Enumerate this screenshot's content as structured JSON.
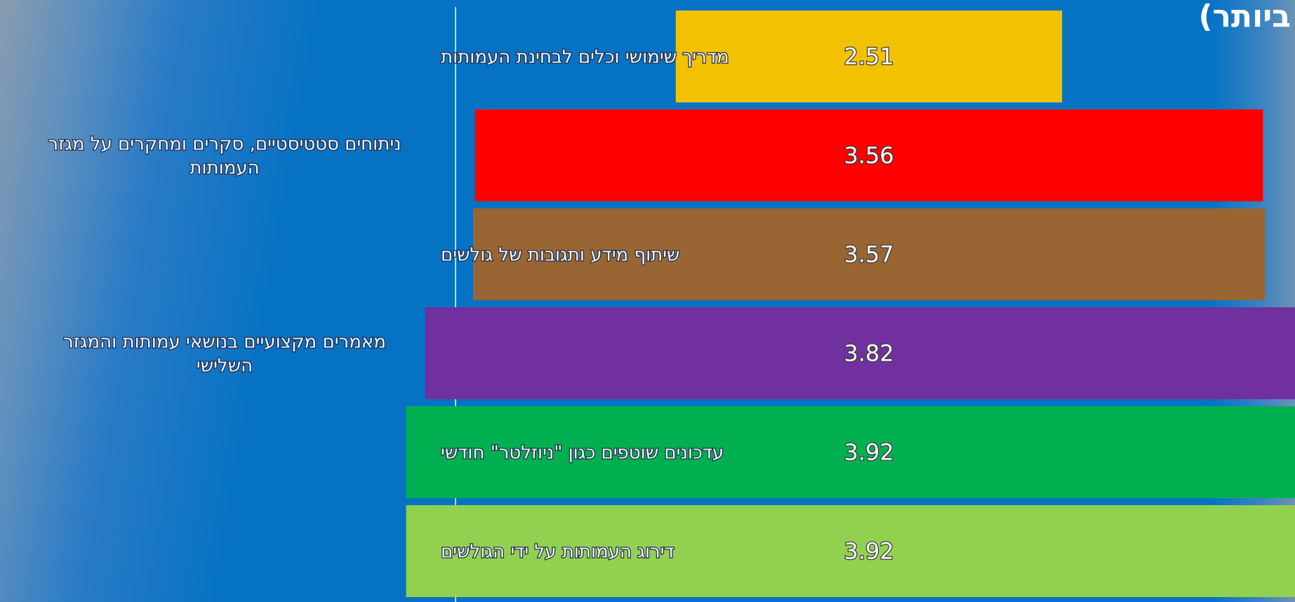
{
  "title": "ביותר)",
  "chart_data": {
    "type": "bar",
    "orientation": "horizontal",
    "xlim": [
      1.5,
      4.0
    ],
    "categories": [
      [
        "מדריך שימושי וכלים לבחינת העמותות"
      ],
      [
        "ניתוחים סטטיסטיים, סקרים ומחקרים על מגזר",
        "העמותות"
      ],
      [
        "שיתוף מידע ותגובות של גולשים"
      ],
      [
        "מאמרים מקצועיים בנושאי עמותות והמגזר",
        "השלישי"
      ],
      [
        "עדכונים שוטפים כגון \"ניוזלטר\" חודשי"
      ],
      [
        "דירוג העמותות על ידי הגולשים"
      ]
    ],
    "values": [
      2.51,
      3.56,
      3.57,
      3.82,
      3.92,
      3.92
    ],
    "value_labels": [
      "2.51",
      "3.56",
      "3.57",
      "3.82",
      "3.92",
      "3.92"
    ],
    "colors": [
      "#f2c200",
      "#ff0000",
      "#996633",
      "#7030a0",
      "#00b050",
      "#92d050"
    ]
  }
}
